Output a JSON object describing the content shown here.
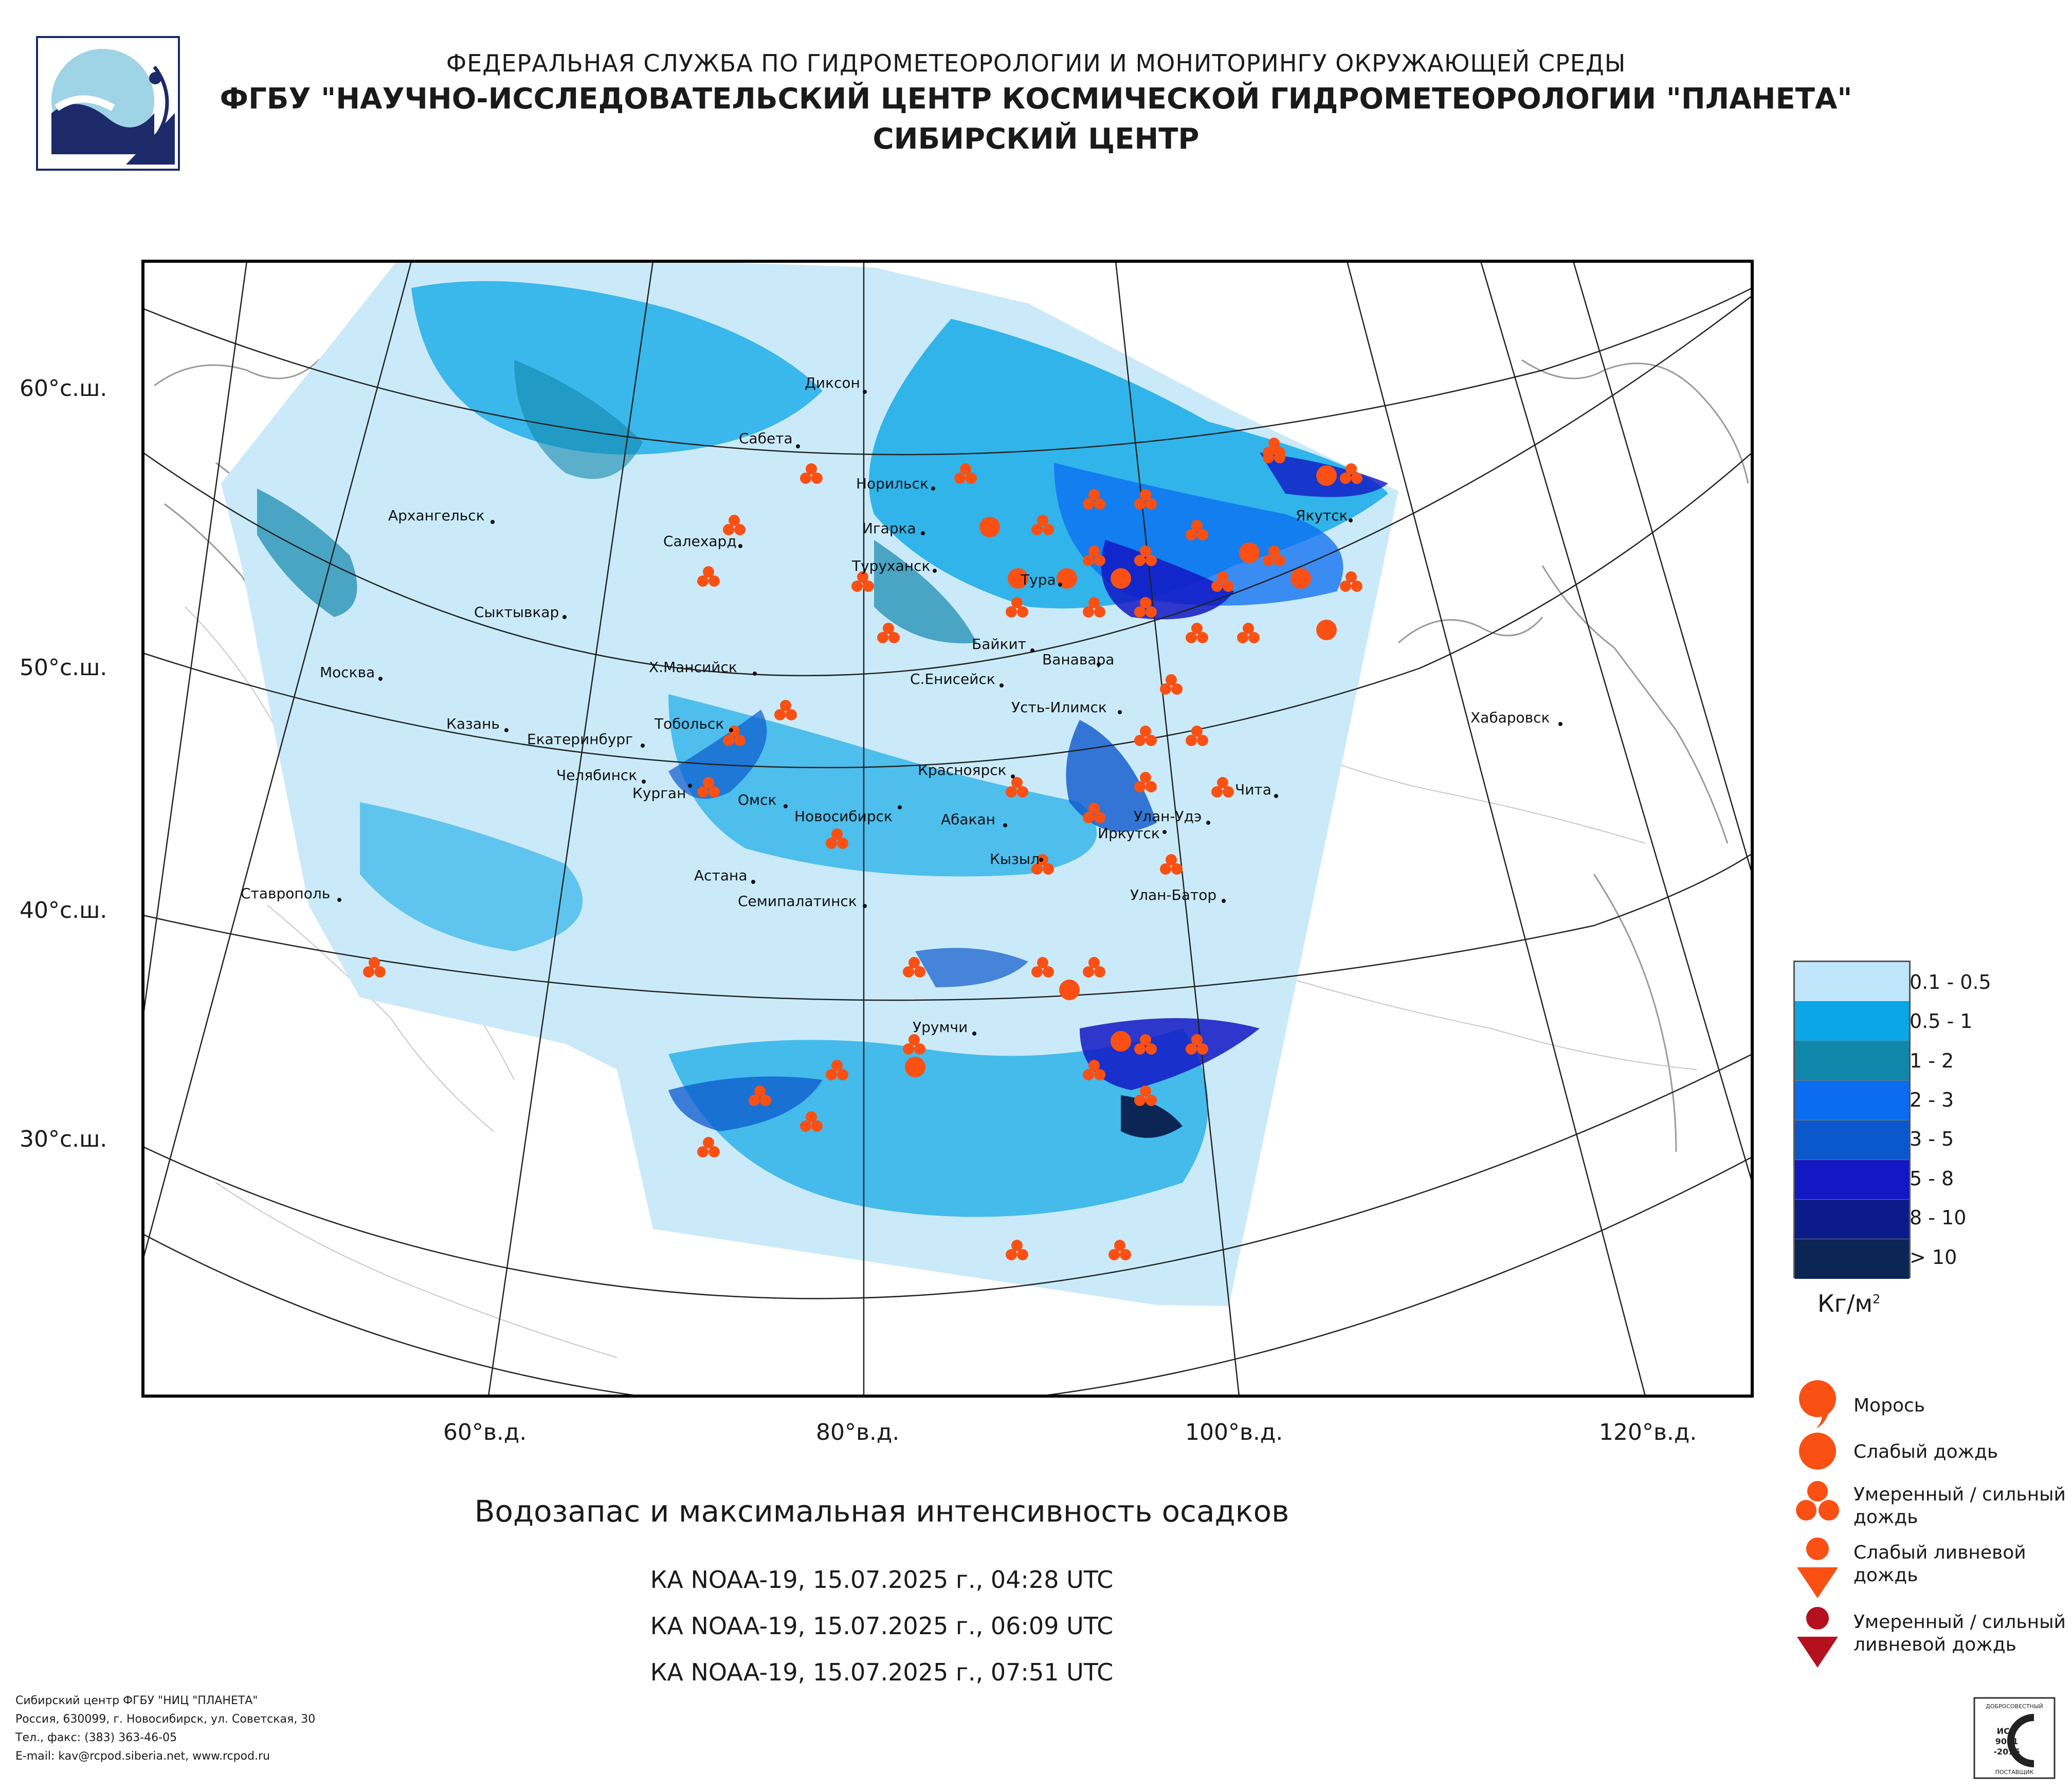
{
  "header": {
    "line1": "ФЕДЕРАЛЬНАЯ СЛУЖБА ПО ГИДРОМЕТЕОРОЛОГИИ И МОНИТОРИНГУ ОКРУЖАЮЩЕЙ СРЕДЫ",
    "line2": "ФГБУ \"НАУЧНО-ИССЛЕДОВАТЕЛЬСКИЙ ЦЕНТР КОСМИЧЕСКОЙ ГИДРОМЕТЕОРОЛОГИИ \"ПЛАНЕТА\"",
    "line3": "СИБИРСКИЙ ЦЕНТР"
  },
  "logo_icon": "planeta-logo-icon",
  "map": {
    "lat_labels": [
      "60°с.ш.",
      "50°с.ш.",
      "40°с.ш.",
      "30°с.ш."
    ],
    "lon_labels": [
      "60°в.д.",
      "80°в.д.",
      "100°в.д.",
      "120°в.д."
    ],
    "cities": {
      "dikson": "Диксон",
      "sabeta": "Сабета",
      "norilsk": "Норильск",
      "arkhangelsk": "Архангельск",
      "salekhard": "Салехард",
      "igarka": "Игарка",
      "yakutsk": "Якутск",
      "turukhansk": "Туруханск",
      "tura": "Тура",
      "syktyvkar": "Сыктывкар",
      "baykit": "Байкит",
      "vanavara": "Ванавара",
      "moscow": "Москва",
      "khmansiysk": "Х.Мансийск",
      "syeniseysk": "С.Енисейск",
      "khabarovsk": "Хабаровск",
      "ustilimsk": "Усть-Илимск",
      "kazan": "Казань",
      "tobolsk": "Тобольск",
      "yekaterinburg": "Екатеринбург",
      "chelyabinsk": "Челябинск",
      "krasnoyarsk": "Красноярск",
      "kurgan": "Курган",
      "chita": "Чита",
      "omsk": "Омск",
      "novosibirsk": "Новосибирск",
      "abakan": "Абакан",
      "ulanude": "Улан-Удэ",
      "irkutsk": "Иркутск",
      "kyzyl": "Кызыл",
      "astana": "Астана",
      "stavropol": "Ставрополь",
      "semipalatinsk": "Семипалатинск",
      "ulanbator": "Улан-Батор",
      "urumqi": "Урумчи"
    }
  },
  "legend": {
    "classes": [
      {
        "label": "0.1 - 0.5",
        "color": "#bfe6fb"
      },
      {
        "label": "0.5 - 1",
        "color": "#0aa6e6"
      },
      {
        "label": "1 - 2",
        "color": "#1187ac"
      },
      {
        "label": "2 - 3",
        "color": "#0a6cf0"
      },
      {
        "label": "3 - 5",
        "color": "#0b58cc"
      },
      {
        "label": "5 - 8",
        "color": "#1218c4"
      },
      {
        "label": "8 - 10",
        "color": "#0b1c8a"
      },
      {
        "label": "> 10",
        "color": "#0b2654"
      }
    ],
    "unit_main": "Кг/м",
    "unit_sup": "2",
    "precip_types": [
      {
        "label": "Морось",
        "icon": "drizzle-icon",
        "color": "#fa5014"
      },
      {
        "label": "Слабый дождь",
        "icon": "light-rain-icon",
        "color": "#fa5014"
      },
      {
        "label": "Умеренный / сильный дождь",
        "icon": "moderate-rain-icon",
        "color": "#fa5014"
      },
      {
        "label": "Слабый ливневой дождь",
        "icon": "light-shower-icon",
        "color": "#fa5014"
      },
      {
        "label": "Умеренный / сильный ливневой дождь",
        "icon": "heavy-shower-icon",
        "color": "#b4101e"
      }
    ]
  },
  "caption": "Водозапас и максимальная интенсивность осадков",
  "passes": [
    "КА NOAA-19, 15.07.2025 г., 04:28 UTC",
    "КА NOAA-19, 15.07.2025 г., 06:09 UTC",
    "КА NOAA-19, 15.07.2025 г., 07:51 UTC"
  ],
  "contacts": [
    "Сибирский центр ФГБУ \"НИЦ \"ПЛАНЕТА\"",
    "Россия, 630099, г. Новосибирск, ул. Советская, 30",
    "Тел., факс: (383) 363-46-05",
    "E-mail: kav@rcpod.siberia.net, www.rcpod.ru"
  ],
  "iso_badge": {
    "top": "ДОБРОСОВЕСТНЫЙ",
    "l1": "ИСО",
    "l2": "9001",
    "l3": "-2015",
    "bottom": "ПОСТАВЩИК"
  },
  "colors": {
    "rain_orange": "#fa5014",
    "shower_dark_red": "#b4101e"
  }
}
